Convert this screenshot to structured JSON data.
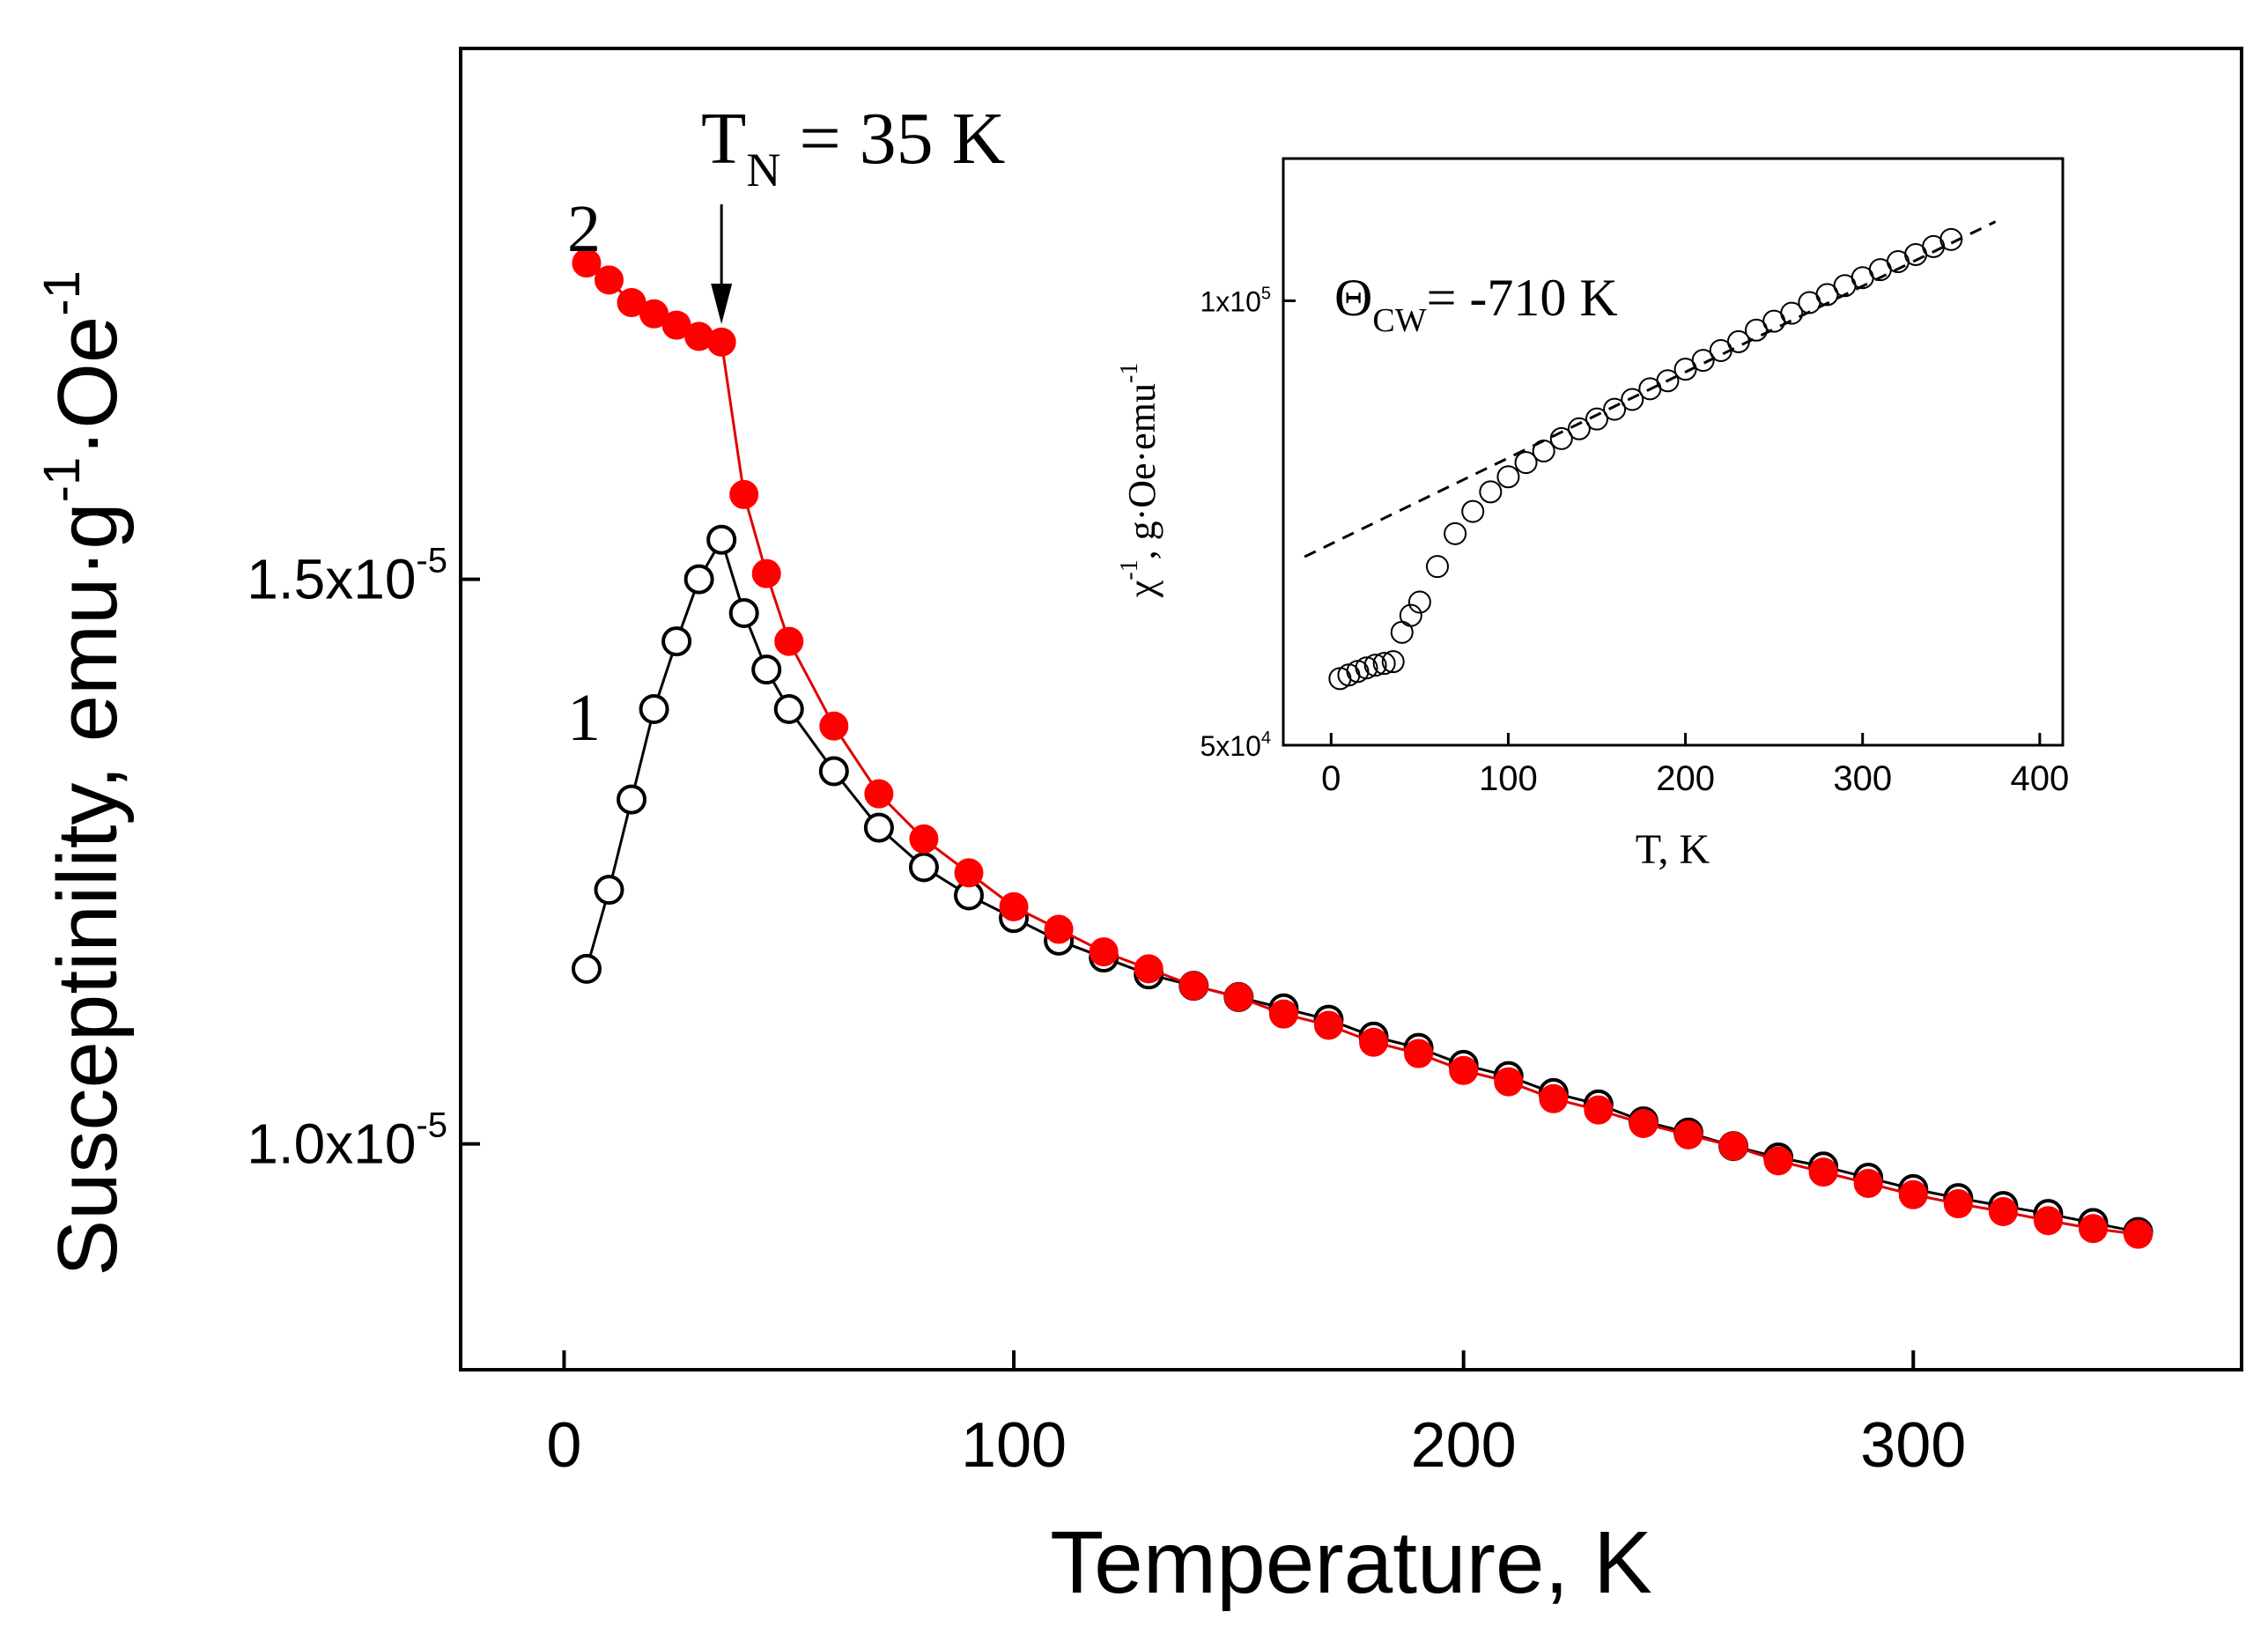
{
  "colors": {
    "axis": "#000000",
    "series_fc": "#000000",
    "series_zfc_fill": "#ff0000",
    "series_zfc_line": "#e00000",
    "marker_open_fill": "#ffffff",
    "fit_line": "#000000"
  },
  "chart_data": [
    {
      "id": "main",
      "type": "line",
      "title": "",
      "xlabel": "Temperature, K",
      "ylabel_parts": {
        "base": "Susceptinility, emu",
        "dot1": "·",
        "g": "g",
        "g_exp": "-1",
        "dot2": "·",
        "oe": "Oe",
        "oe_exp": "-1"
      },
      "xlim": [
        -23,
        373
      ],
      "ylim": [
        8e-06,
        1.97e-05
      ],
      "xticks": [
        0,
        100,
        200,
        300
      ],
      "xtick_labels": [
        "0",
        "100",
        "200",
        "300"
      ],
      "yticks": [
        1e-05,
        1.5e-05
      ],
      "ytick_labels": [
        {
          "mantissa": "1.0x10",
          "exp": "-5"
        },
        {
          "mantissa": "1.5x10",
          "exp": "-5"
        }
      ],
      "series": [
        {
          "name": "1",
          "marker": "open-circle",
          "x": [
            5,
            10,
            15,
            20,
            25,
            30,
            35,
            40,
            45,
            50,
            60,
            70,
            80,
            90,
            100,
            110,
            120,
            130,
            140,
            150,
            160,
            170,
            180,
            190,
            200,
            210,
            220,
            230,
            240,
            250,
            260,
            270,
            280,
            290,
            300,
            310,
            320,
            330,
            340,
            350
          ],
          "y": [
            1.155e-05,
            1.225e-05,
            1.305e-05,
            1.385e-05,
            1.445e-05,
            1.5e-05,
            1.535e-05,
            1.47e-05,
            1.42e-05,
            1.385e-05,
            1.33e-05,
            1.28e-05,
            1.245e-05,
            1.22e-05,
            1.2e-05,
            1.18e-05,
            1.165e-05,
            1.15e-05,
            1.14e-05,
            1.13e-05,
            1.12e-05,
            1.11e-05,
            1.095e-05,
            1.085e-05,
            1.07e-05,
            1.06e-05,
            1.045e-05,
            1.035e-05,
            1.02e-05,
            1.01e-05,
            9.98e-06,
            9.88e-06,
            9.8e-06,
            9.7e-06,
            9.6e-06,
            9.52e-06,
            9.45e-06,
            9.38e-06,
            9.3e-06,
            9.22e-06
          ]
        },
        {
          "name": "2",
          "marker": "filled-circle",
          "x": [
            5,
            10,
            15,
            20,
            25,
            30,
            35,
            40,
            45,
            50,
            60,
            70,
            80,
            90,
            100,
            110,
            120,
            130,
            140,
            150,
            160,
            170,
            180,
            190,
            200,
            210,
            220,
            230,
            240,
            250,
            260,
            270,
            280,
            290,
            300,
            310,
            320,
            330,
            340,
            350
          ],
          "y": [
            1.78e-05,
            1.765e-05,
            1.745e-05,
            1.735e-05,
            1.725e-05,
            1.715e-05,
            1.71e-05,
            1.575e-05,
            1.505e-05,
            1.445e-05,
            1.37e-05,
            1.31e-05,
            1.27e-05,
            1.24e-05,
            1.21e-05,
            1.19e-05,
            1.17e-05,
            1.155e-05,
            1.14e-05,
            1.13e-05,
            1.115e-05,
            1.105e-05,
            1.09e-05,
            1.08e-05,
            1.065e-05,
            1.055e-05,
            1.04e-05,
            1.03e-05,
            1.018e-05,
            1.008e-05,
            9.98e-06,
            9.85e-06,
            9.75e-06,
            9.65e-06,
            9.55e-06,
            9.47e-06,
            9.4e-06,
            9.32e-06,
            9.25e-06,
            9.2e-06
          ]
        }
      ],
      "annotations": {
        "tn_main": "T",
        "tn_sub": "N",
        "tn_value": " = 35 K",
        "tn_arrow_x": 35,
        "label_1": "1",
        "label_2": "2"
      }
    },
    {
      "id": "inset",
      "type": "scatter",
      "title": "",
      "xlabel": "T, K",
      "ylabel_parts": {
        "chi": "χ",
        "chi_exp": "-1",
        "rest": ", g·Oe·emu",
        "rest_exp": "-1"
      },
      "xlim": [
        -27,
        413
      ],
      "ylim": [
        50000.0,
        116000.0
      ],
      "xticks": [
        0,
        100,
        200,
        300,
        400
      ],
      "xtick_labels": [
        "0",
        "100",
        "200",
        "300",
        "400"
      ],
      "yticks": [
        50000.0,
        100000.0
      ],
      "ytick_labels": [
        {
          "mantissa": "5x10",
          "exp": "4"
        },
        {
          "mantissa": "1x10",
          "exp": "5"
        }
      ],
      "series": [
        {
          "name": "chi_inverse",
          "marker": "open-circle",
          "x": [
            5,
            10,
            15,
            20,
            25,
            30,
            35,
            40,
            45,
            50,
            60,
            70,
            80,
            90,
            100,
            110,
            120,
            130,
            140,
            150,
            160,
            170,
            180,
            190,
            200,
            210,
            220,
            230,
            240,
            250,
            260,
            270,
            280,
            290,
            300,
            310,
            320,
            330,
            340,
            350
          ],
          "y": [
            57500,
            57900,
            58300,
            58700,
            59000,
            59200,
            59400,
            62700,
            64600,
            66100,
            70100,
            73800,
            76300,
            78500,
            80200,
            81800,
            83100,
            84500,
            85600,
            86700,
            87800,
            88900,
            90100,
            91000,
            92300,
            93300,
            94400,
            95400,
            96700,
            97700,
            98600,
            99800,
            100700,
            101700,
            102600,
            103500,
            104400,
            105200,
            106100,
            106900
          ]
        },
        {
          "name": "curie_weiss_fit",
          "style": "dashed",
          "x": [
            -15,
            375
          ],
          "y": [
            71200,
            108900
          ]
        }
      ],
      "annotations": {
        "theta_symbol": "Θ",
        "theta_sub": "CW",
        "theta_value": "= -710 K"
      }
    }
  ]
}
